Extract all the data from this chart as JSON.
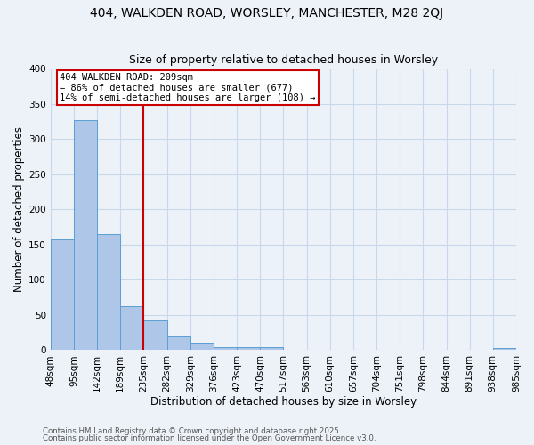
{
  "title1": "404, WALKDEN ROAD, WORSLEY, MANCHESTER, M28 2QJ",
  "title2": "Size of property relative to detached houses in Worsley",
  "xlabel": "Distribution of detached houses by size in Worsley",
  "ylabel": "Number of detached properties",
  "bar_values": [
    157,
    327,
    165,
    63,
    42,
    20,
    10,
    4,
    4,
    4,
    0,
    0,
    0,
    0,
    0,
    0,
    0,
    0,
    0,
    3
  ],
  "bin_labels": [
    "48sqm",
    "95sqm",
    "142sqm",
    "189sqm",
    "235sqm",
    "282sqm",
    "329sqm",
    "376sqm",
    "423sqm",
    "470sqm",
    "517sqm",
    "563sqm",
    "610sqm",
    "657sqm",
    "704sqm",
    "751sqm",
    "798sqm",
    "844sqm",
    "891sqm",
    "938sqm",
    "985sqm"
  ],
  "bar_color": "#aec6e8",
  "bar_edge_color": "#5a9fd4",
  "grid_color": "#c8d8ea",
  "background_color": "#edf2f9",
  "red_line_color": "#cc0000",
  "red_line_bin_index": 4,
  "annotation_text": "404 WALKDEN ROAD: 209sqm\n← 86% of detached houses are smaller (677)\n14% of semi-detached houses are larger (108) →",
  "annotation_box_color": "#ffffff",
  "annotation_box_edge": "#cc0000",
  "ylim": [
    0,
    400
  ],
  "yticks": [
    0,
    50,
    100,
    150,
    200,
    250,
    300,
    350,
    400
  ],
  "footnote1": "Contains HM Land Registry data © Crown copyright and database right 2025.",
  "footnote2": "Contains public sector information licensed under the Open Government Licence v3.0.",
  "title_fontsize": 10,
  "subtitle_fontsize": 9,
  "axis_label_fontsize": 8.5,
  "tick_fontsize": 7.5,
  "annotation_fontsize": 7.5,
  "footnote_fontsize": 6.2
}
